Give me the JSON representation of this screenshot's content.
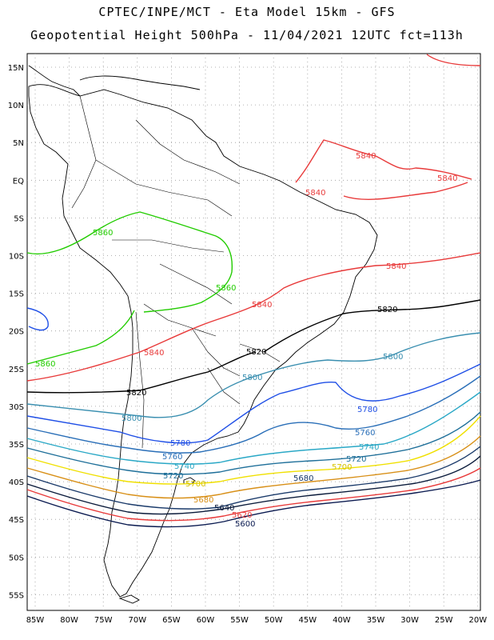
{
  "header": {
    "line1": "CPTEC/INPE/MCT -  Eta Model 15km - GFS",
    "line2": "Geopotential Height 500hPa - 11/04/2021 12UTC fct=113h"
  },
  "axes": {
    "lat_ticks": [
      "15N",
      "10N",
      "5N",
      "EQ",
      "5S",
      "10S",
      "15S",
      "20S",
      "25S",
      "30S",
      "35S",
      "40S",
      "45S",
      "50S",
      "55S"
    ],
    "lon_ticks": [
      "85W",
      "80W",
      "75W",
      "70W",
      "65W",
      "60W",
      "55W",
      "50W",
      "45W",
      "40W",
      "35W",
      "30W",
      "25W",
      "20W"
    ]
  },
  "colors": {
    "c5860": "#22cc00",
    "c5840": "#e83a3a",
    "c5820": "#000000",
    "c5800": "#3a8fb0",
    "c5780": "#1f4fe6",
    "c5760": "#2a6fb8",
    "c5740": "#2aa8c6",
    "c5720": "#1e6f99",
    "c5700": "#f0e000",
    "c5680": "#d89018",
    "c5660": "#1a3a6a",
    "c5640": "#0a1a3a",
    "c5620": "#e83a3a",
    "c5600": "#0a1a50",
    "coast": "#000000",
    "grid": "#999999"
  },
  "contours": {
    "l5860a": "5860",
    "l5860b": "5860",
    "l5860c": "5860",
    "l5840a": "5840",
    "l5840b": "5840",
    "l5840c": "5840",
    "l5840d": "5840",
    "l5840e": "5840",
    "l5840f": "5840",
    "l5820a": "5820",
    "l5820b": "5820",
    "l5820c": "5820",
    "l5800a": "5800",
    "l5800b": "5800",
    "l5800c": "5800",
    "l5780a": "5780",
    "l5780b": "5780",
    "l5760a": "5760",
    "l5760b": "5760",
    "l5740a": "5740",
    "l5740b": "5740",
    "l5720a": "5720",
    "l5720b": "5720",
    "l5700a": "5700",
    "l5700b": "5700",
    "l5680a": "5680",
    "l5680b": "5680",
    "l5640": "5640",
    "l5620": "5620",
    "l5600": "5600"
  }
}
